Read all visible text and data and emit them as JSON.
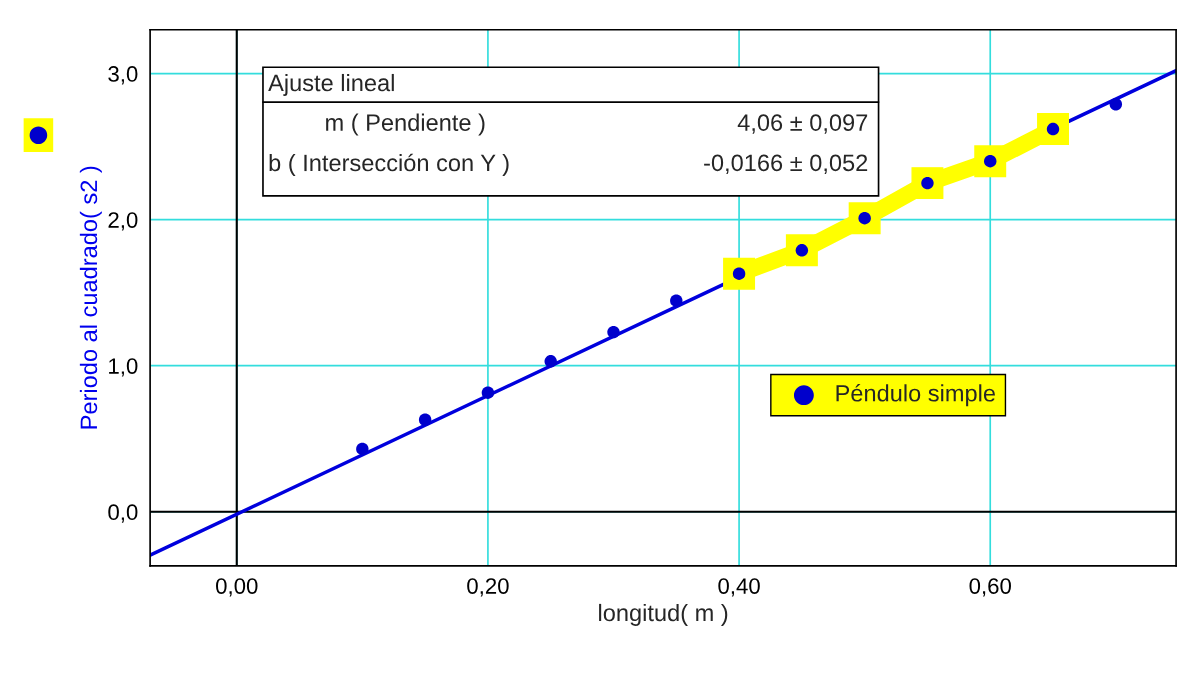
{
  "chart_data": {
    "type": "scatter",
    "xlabel": "longitud( m )",
    "ylabel": "Periodo al cuadrado( s2 )",
    "xlim": [
      -0.069,
      0.748
    ],
    "ylim": [
      -0.37,
      3.3
    ],
    "xticks": [
      {
        "value": 0,
        "label": "0,00"
      },
      {
        "value": 0.2,
        "label": "0,20"
      },
      {
        "value": 0.4,
        "label": "0,40"
      },
      {
        "value": 0.6,
        "label": "0,60"
      }
    ],
    "yticks": [
      {
        "value": 0,
        "label": "0,0"
      },
      {
        "value": 1,
        "label": "1,0"
      },
      {
        "value": 2,
        "label": "2,0"
      },
      {
        "value": 3,
        "label": "3,0"
      }
    ],
    "grid": true,
    "legend": "right",
    "marker": "circle",
    "annotations": [
      "Ajuste lineal",
      "m ( Pendiente )",
      "4,06 ± 0,097",
      "b ( Intersección con Y )",
      "-0,0166 ± 0,052"
    ],
    "series": [
      {
        "type": "line",
        "color": "#0000dd",
        "marker": "none",
        "x": [
          -0.069,
          0.748
        ],
        "values": [
          -0.297,
          3.02
        ]
      },
      {
        "type": "line",
        "color": "#ffff00",
        "marker": "square",
        "x": [
          0.4,
          0.45,
          0.5,
          0.55,
          0.6,
          0.65
        ],
        "values": [
          1.63,
          1.79,
          2.01,
          2.25,
          2.4,
          2.62
        ]
      },
      {
        "name": "Péndulo simple",
        "color": "#0000cc",
        "x": [
          0.1,
          0.15,
          0.2,
          0.25,
          0.3,
          0.35,
          0.4,
          0.45,
          0.5,
          0.55,
          0.6,
          0.65,
          0.7
        ],
        "values": [
          0.43,
          0.63,
          0.815,
          1.03,
          1.23,
          1.445,
          1.63,
          1.79,
          2.01,
          2.25,
          2.4,
          2.62,
          2.79
        ]
      }
    ]
  }
}
